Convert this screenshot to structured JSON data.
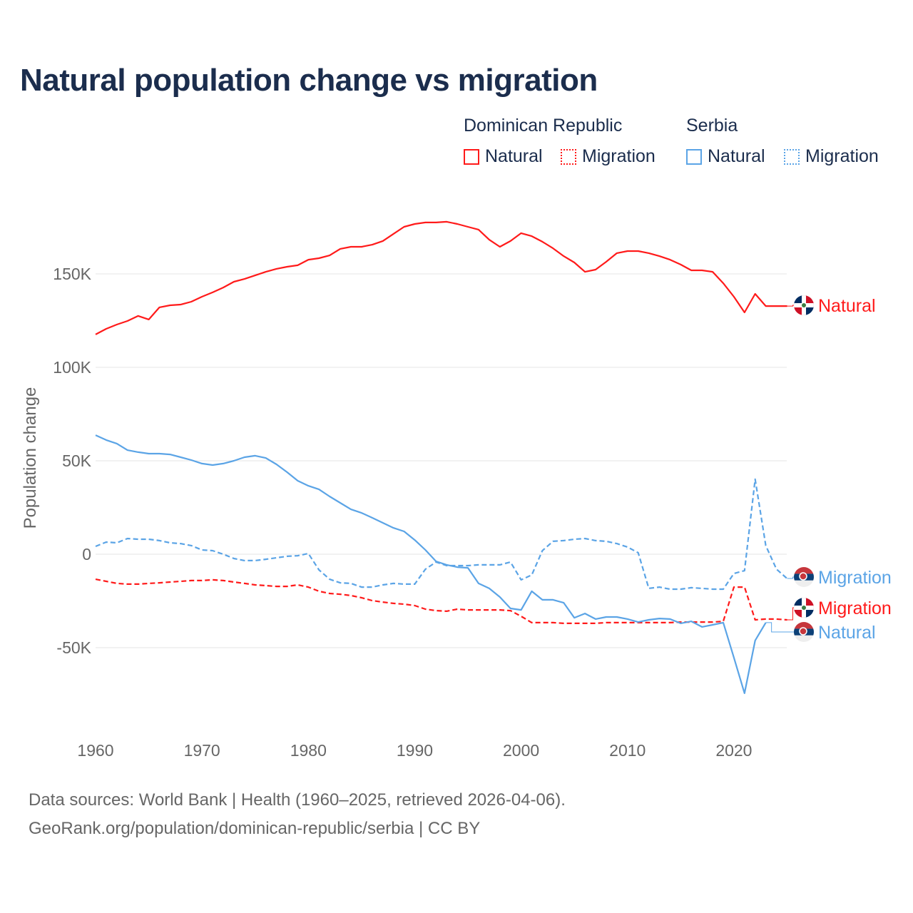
{
  "title": "Natural population change vs migration",
  "legend": {
    "groups": [
      {
        "name": "Dominican Republic",
        "items": [
          "Natural",
          "Migration"
        ]
      },
      {
        "name": "Serbia",
        "items": [
          "Natural",
          "Migration"
        ]
      }
    ]
  },
  "colors": {
    "dominican_republic": "#ff1a1a",
    "serbia": "#5ba4e6",
    "title": "#1b2d4d"
  },
  "footer": {
    "line1": "Data sources: World Bank | Health (1960–2025, retrieved 2026-04-06).",
    "line2": "GeoRank.org/population/dominican-republic/serbia | CC BY"
  },
  "chart_data": {
    "type": "line",
    "title": "Natural population change vs migration",
    "xlabel": "",
    "ylabel": "Population change",
    "xlim": [
      1960,
      2025
    ],
    "ylim": [
      -90000,
      190000
    ],
    "x_ticks": [
      1960,
      1970,
      1980,
      1990,
      2000,
      2010,
      2020
    ],
    "x_tick_labels": [
      "1960",
      "1970",
      "1980",
      "1990",
      "2000",
      "2010",
      "2020"
    ],
    "y_ticks": [
      150000,
      100000,
      50000,
      0,
      -50000
    ],
    "y_tick_labels": [
      "150K",
      "100K",
      "50K",
      "0",
      "-50K"
    ],
    "grid": true,
    "legend_position": "top-right",
    "x_start": 1960,
    "series": [
      {
        "name": "Dominican Republic Natural",
        "country": "dominican_republic",
        "style": "solid",
        "end_label": "Natural",
        "values_k": [
          117.6,
          120.6,
          122.9,
          124.8,
          127.5,
          125.6,
          132.1,
          133.2,
          133.6,
          135.1,
          137.8,
          140.1,
          142.7,
          145.8,
          147.3,
          149.2,
          151.1,
          152.7,
          153.8,
          154.6,
          157.6,
          158.4,
          159.9,
          163.4,
          164.5,
          164.5,
          165.6,
          167.6,
          171.4,
          175.2,
          176.7,
          177.5,
          177.5,
          177.9,
          176.7,
          175.2,
          173.7,
          168.3,
          164.5,
          167.6,
          171.8,
          170.2,
          167.2,
          163.7,
          159.5,
          156.1,
          151.1,
          152.3,
          156.5,
          161.1,
          162.2,
          162.2,
          161.1,
          159.5,
          157.6,
          155.0,
          151.9,
          151.9,
          151.1,
          145.0,
          137.8,
          129.4,
          139.3,
          132.8,
          132.8,
          132.8
        ]
      },
      {
        "name": "Dominican Republic Migration",
        "country": "dominican_republic",
        "style": "dashed",
        "end_label": "Migration",
        "values_k": [
          -13.4,
          -14.5,
          -15.6,
          -16.0,
          -16.0,
          -15.6,
          -15.3,
          -14.9,
          -14.5,
          -14.1,
          -14.1,
          -13.7,
          -14.1,
          -14.9,
          -15.6,
          -16.4,
          -16.8,
          -17.2,
          -17.2,
          -16.4,
          -17.6,
          -19.8,
          -21.0,
          -21.4,
          -22.1,
          -23.3,
          -24.8,
          -25.6,
          -26.3,
          -26.7,
          -27.5,
          -29.4,
          -30.2,
          -30.5,
          -29.4,
          -29.8,
          -29.8,
          -29.8,
          -29.8,
          -30.2,
          -33.2,
          -36.6,
          -36.6,
          -36.6,
          -37.0,
          -37.0,
          -37.0,
          -37.0,
          -36.6,
          -36.6,
          -36.6,
          -36.6,
          -36.6,
          -36.6,
          -36.6,
          -36.3,
          -36.3,
          -36.3,
          -36.3,
          -35.9,
          -17.6,
          -17.6,
          -35.1,
          -34.7,
          -34.7,
          -35.1
        ]
      },
      {
        "name": "Serbia Natural",
        "country": "serbia",
        "style": "solid",
        "end_label": "Natural",
        "values_k": [
          63.7,
          61.1,
          59.2,
          55.7,
          54.6,
          53.8,
          53.8,
          53.4,
          51.9,
          50.4,
          48.5,
          47.7,
          48.5,
          50.0,
          51.9,
          52.7,
          51.5,
          48.1,
          43.9,
          39.3,
          36.6,
          34.7,
          30.9,
          27.5,
          24.0,
          22.1,
          19.5,
          16.8,
          14.1,
          12.2,
          7.6,
          2.3,
          -3.8,
          -5.7,
          -6.9,
          -7.3,
          -15.6,
          -18.3,
          -22.9,
          -29.0,
          -29.8,
          -19.8,
          -24.4,
          -24.4,
          -26.0,
          -34.0,
          -31.7,
          -34.7,
          -33.6,
          -33.6,
          -34.7,
          -36.3,
          -35.1,
          -34.4,
          -34.7,
          -37.0,
          -35.9,
          -38.9,
          -37.8,
          -36.6,
          -55.3,
          -74.4,
          -46.2,
          -36.6,
          null,
          null
        ]
      },
      {
        "name": "Serbia Migration",
        "country": "serbia",
        "style": "dashed",
        "end_label": "Migration",
        "values_k": [
          4.2,
          6.5,
          6.1,
          8.4,
          8.0,
          8.0,
          7.3,
          6.1,
          5.7,
          4.6,
          2.3,
          1.9,
          0.0,
          -2.3,
          -3.4,
          -3.4,
          -2.7,
          -1.9,
          -1.1,
          -0.8,
          0.4,
          -8.4,
          -13.4,
          -15.3,
          -15.6,
          -17.6,
          -17.6,
          -16.4,
          -15.6,
          -16.0,
          -16.0,
          -8.0,
          -4.2,
          -6.1,
          -6.1,
          -6.1,
          -5.7,
          -5.7,
          -5.7,
          -4.2,
          -13.7,
          -11.1,
          1.9,
          6.9,
          7.3,
          8.0,
          8.4,
          7.3,
          6.9,
          5.7,
          3.8,
          0.8,
          -18.3,
          -17.6,
          -18.7,
          -18.7,
          -17.9,
          -18.3,
          -18.7,
          -18.7,
          -10.3,
          -8.8,
          40.1,
          4.6,
          -8.0,
          -13.0
        ]
      }
    ]
  }
}
